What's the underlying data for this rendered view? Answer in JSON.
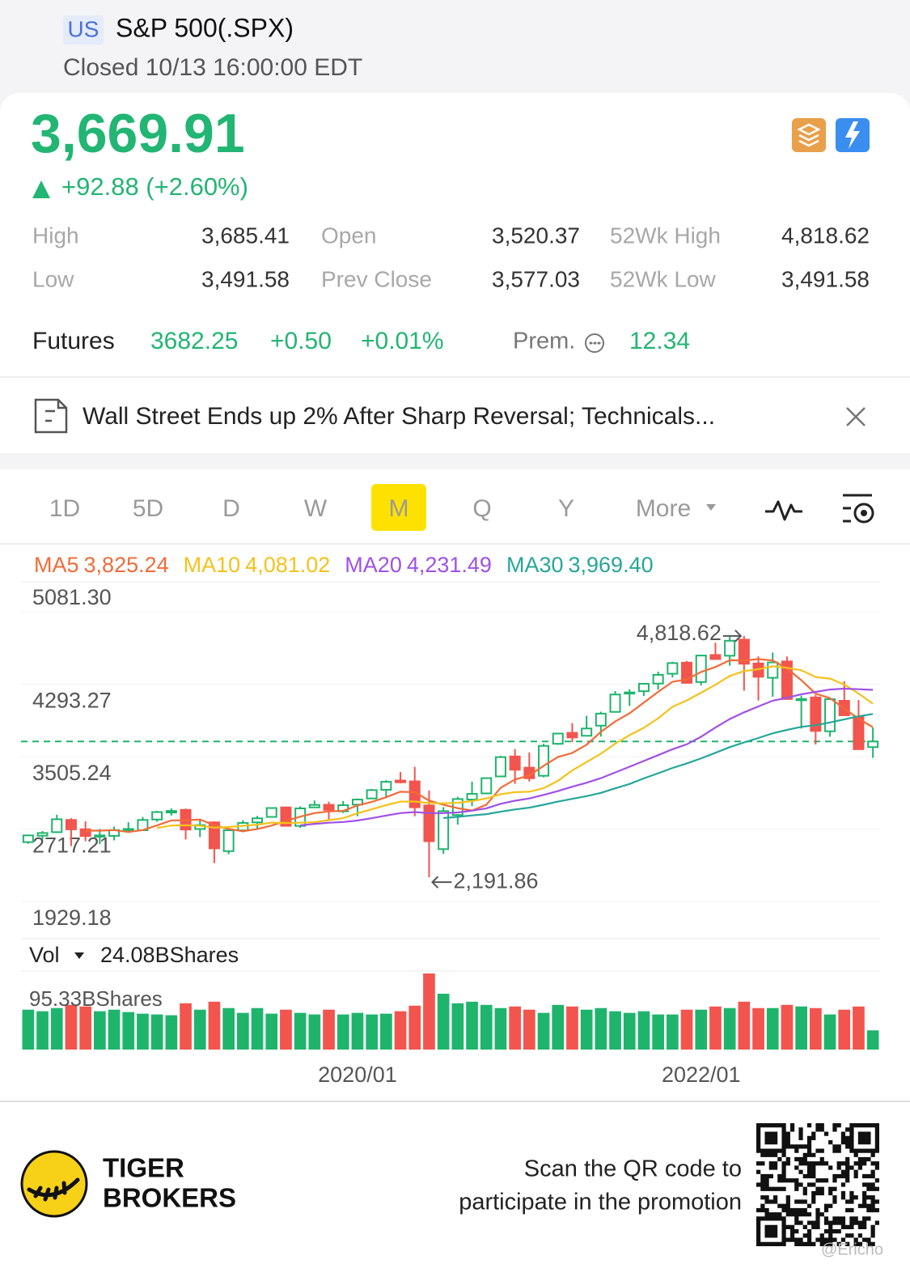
{
  "header": {
    "market": "US",
    "title": "S&P 500(.SPX)",
    "status": "Closed 10/13 16:00:00 EDT"
  },
  "quote": {
    "price": "3,669.91",
    "change": "+92.88 (+2.60%)",
    "stats": [
      {
        "label": "High",
        "value": "3,685.41"
      },
      {
        "label": "Open",
        "value": "3,520.37"
      },
      {
        "label": "52Wk High",
        "value": "4,818.62"
      },
      {
        "label": "Low",
        "value": "3,491.58"
      },
      {
        "label": "Prev Close",
        "value": "3,577.03"
      },
      {
        "label": "52Wk Low",
        "value": "3,491.58"
      }
    ],
    "futures": {
      "label": "Futures",
      "price": "3682.25",
      "change": "+0.50",
      "percent": "+0.01%",
      "prem_label": "Prem.",
      "prem": "12.34"
    }
  },
  "news": {
    "headline": "Wall Street Ends up 2% After Sharp Reversal; Technicals..."
  },
  "tabs": [
    "1D",
    "5D",
    "D",
    "W",
    "M",
    "Q",
    "Y",
    "More"
  ],
  "active_tab": "M",
  "chart_data": {
    "type": "candlestick",
    "categories": [
      null,
      null,
      null,
      null,
      null,
      null,
      null,
      null,
      null,
      null,
      null,
      null,
      null,
      null,
      null,
      null,
      null,
      null,
      null,
      null,
      null,
      null,
      null,
      null,
      null,
      null,
      "2020/01",
      null,
      null,
      null,
      null,
      null,
      null,
      null,
      null,
      null,
      null,
      null,
      null,
      null,
      null,
      null,
      null,
      null,
      null,
      null,
      null,
      null,
      null,
      null,
      "2022/01",
      null,
      null,
      null,
      null,
      null,
      null,
      null,
      null,
      null
    ],
    "open": [
      2575,
      2645,
      2683,
      2816,
      2715,
      2634,
      2643,
      2718,
      2704,
      2821,
      2897,
      2926,
      2718,
      2790,
      2477,
      2703,
      2790,
      2849,
      2953,
      2751,
      2953,
      2981,
      2910,
      2983,
      3050,
      3144,
      3245,
      3236,
      2974,
      2499,
      2870,
      3038,
      3105,
      3290,
      3507,
      3385,
      3297,
      3645,
      3764,
      3732,
      3842,
      3992,
      4191,
      4217,
      4300,
      4407,
      4528,
      4317,
      4611,
      4603,
      4778,
      4519,
      4363,
      4541,
      4131,
      4149,
      3781,
      4113,
      3937,
      3609
    ],
    "high": [
      2657,
      2695,
      2873,
      2835,
      2801,
      2718,
      2742,
      2791,
      2848,
      2916,
      2941,
      2940,
      2816,
      2800,
      2708,
      2813,
      2860,
      2949,
      2955,
      2964,
      3028,
      3014,
      3022,
      3050,
      3154,
      3248,
      3338,
      3394,
      3137,
      2955,
      3068,
      3233,
      3279,
      3514,
      3588,
      3550,
      3645,
      3760,
      3870,
      3950,
      3994,
      4218,
      4238,
      4302,
      4430,
      4538,
      4546,
      4608,
      4744,
      4808,
      4818.62,
      4595,
      4637,
      4594,
      4169,
      4177,
      4140,
      4325,
      4120,
      3820
    ],
    "low": [
      2557,
      2605,
      2682,
      2533,
      2585,
      2553,
      2594,
      2691,
      2698,
      2796,
      2864,
      2604,
      2631,
      2347,
      2444,
      2682,
      2723,
      2849,
      2751,
      2729,
      2952,
      2822,
      2892,
      2856,
      3050,
      3070,
      3214,
      2856,
      2191.86,
      2447,
      2766,
      2966,
      3101,
      3284,
      3209,
      3234,
      3280,
      3633,
      3663,
      3725,
      3723,
      3992,
      4057,
      4165,
      4234,
      4367,
      4306,
      4279,
      4560,
      4495,
      4223,
      4115,
      4157,
      4124,
      3811,
      3637,
      3721,
      3955,
      3585,
      3491.58
    ],
    "close": [
      2648,
      2674,
      2824,
      2714,
      2641,
      2648,
      2705,
      2718,
      2816,
      2902,
      2914,
      2712,
      2760,
      2507,
      2704,
      2784,
      2834,
      2946,
      2752,
      2942,
      2980,
      2926,
      2977,
      3038,
      3141,
      3231,
      3226,
      2954,
      2585,
      2912,
      3044,
      3100,
      3271,
      3500,
      3363,
      3270,
      3622,
      3756,
      3714,
      3811,
      3973,
      4181,
      4204,
      4298,
      4395,
      4523,
      4308,
      4605,
      4567,
      4766,
      4516,
      4374,
      4530,
      4132,
      4132,
      3785,
      4130,
      3955,
      3586,
      3669.91
    ],
    "up_color": "#1fb46c",
    "down_color": "#f2554e",
    "ylim": [
      1929.18,
      5081.3
    ],
    "yticks": [
      {
        "value": 5081.3,
        "label": "5081.30"
      },
      4293.27,
      3505.24,
      2717.21,
      1929.18
    ],
    "series": [
      {
        "name": "MA5",
        "value_label": "3,825.24",
        "color": "#f26b38",
        "values": [
          null,
          null,
          null,
          null,
          2700,
          2700,
          2706,
          2685,
          2706,
          2758,
          2811,
          2812,
          2821,
          2759,
          2719,
          2693,
          2718,
          2755,
          2804,
          2852,
          2891,
          2909,
          2915,
          2973,
          3012,
          3063,
          3123,
          3118,
          3027,
          2982,
          2944,
          2919,
          2982,
          3165,
          3256,
          3301,
          3405,
          3502,
          3545,
          3635,
          3775,
          3887,
          3977,
          4093,
          4210,
          4320,
          4346,
          4426,
          4480,
          4554,
          4552,
          4566,
          4551,
          4464,
          4337,
          4191,
          4142,
          4027,
          3918,
          3825.24
        ]
      },
      {
        "name": "MA10",
        "value_label": "4,081.02",
        "color": "#f5c21b",
        "values": [
          null,
          null,
          null,
          null,
          null,
          null,
          null,
          null,
          null,
          2729,
          2756,
          2759,
          2753,
          2732,
          2739,
          2752,
          2765,
          2788,
          2782,
          2786,
          2792,
          2814,
          2835,
          2888,
          2932,
          2977,
          3016,
          3017,
          3000,
          2997,
          3003,
          3021,
          3050,
          3096,
          3119,
          3123,
          3162,
          3242,
          3355,
          3445,
          3538,
          3646,
          3739,
          3819,
          3922,
          4048,
          4116,
          4201,
          4287,
          4382,
          4436,
          4456,
          4488,
          4472,
          4445,
          4372,
          4354,
          4289,
          4191,
          4081.02
        ]
      },
      {
        "name": "MA20",
        "value_label": "4,231.49",
        "color": "#a050e6",
        "values": [
          null,
          null,
          null,
          null,
          null,
          null,
          null,
          null,
          null,
          null,
          null,
          null,
          null,
          null,
          null,
          null,
          null,
          null,
          null,
          2757,
          2774,
          2786,
          2794,
          2810,
          2835,
          2864,
          2891,
          2902,
          2891,
          2891,
          2898,
          2917,
          2943,
          2992,
          3025,
          3050,
          3089,
          3130,
          3178,
          3221,
          3271,
          3333,
          3395,
          3458,
          3521,
          3585,
          3639,
          3722,
          3821,
          3914,
          3987,
          4051,
          4114,
          4145,
          4184,
          4210,
          4235,
          4245,
          4239,
          4231.49
        ]
      },
      {
        "name": "MA30",
        "value_label": "3,969.40",
        "color": "#26a69a",
        "values": [
          null,
          null,
          null,
          null,
          null,
          null,
          null,
          null,
          null,
          null,
          null,
          null,
          null,
          null,
          null,
          null,
          null,
          null,
          null,
          null,
          null,
          null,
          null,
          null,
          null,
          null,
          null,
          null,
          null,
          2837,
          2850,
          2865,
          2879,
          2906,
          2930,
          2950,
          2981,
          3016,
          3046,
          3076,
          3111,
          3160,
          3208,
          3268,
          3324,
          3382,
          3431,
          3487,
          3547,
          3608,
          3659,
          3708,
          3759,
          3796,
          3829,
          3847,
          3877,
          3911,
          3944,
          3969.4
        ]
      }
    ],
    "annotations": {
      "high": "4,818.62",
      "low": "2,191.86"
    },
    "volume": {
      "label": "Vol",
      "current": "24.08BShares",
      "ylim": [
        0,
        95.33
      ],
      "yticks": [
        {
          "value": 95.33,
          "label": "95.33BShares"
        }
      ],
      "values": [
        50,
        48,
        52,
        56,
        54,
        48,
        50,
        47,
        45,
        44,
        43,
        58,
        50,
        60,
        52,
        46,
        52,
        45,
        50,
        46,
        44,
        50,
        44,
        46,
        44,
        45,
        48,
        55,
        95.33,
        70,
        58,
        60,
        56,
        52,
        54,
        50,
        46,
        56,
        54,
        50,
        52,
        48,
        46,
        48,
        44,
        44,
        50,
        50,
        54,
        52,
        60,
        52,
        52,
        56,
        54,
        52,
        44,
        50,
        54,
        24.08
      ]
    }
  },
  "footer": {
    "brand_line1": "TIGER",
    "brand_line2": "BROKERS",
    "promo_line1": "Scan the QR code to",
    "promo_line2": "participate in the promotion",
    "watermark": "@Ericho"
  }
}
